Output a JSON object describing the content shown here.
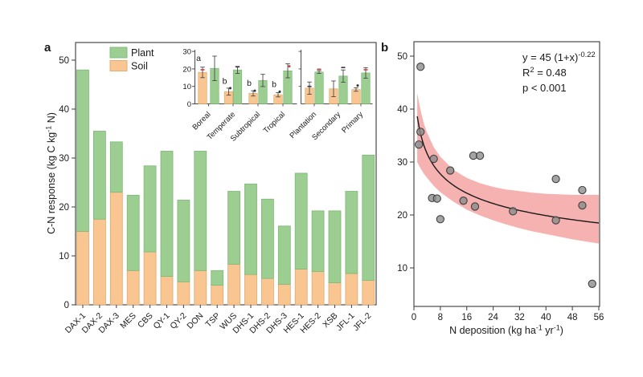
{
  "style": {
    "plant_color": "#9CCE92",
    "plant_stroke": "#7FB878",
    "soil_color": "#F9C591",
    "soil_stroke": "#DFA96F",
    "band_color": "#F5A3A3",
    "fit_color": "#1a1a1a",
    "point_fill": "#8a8a8a",
    "point_stroke": "#404040",
    "axis_color": "#4a4a4a",
    "text_color": "#1a1a1a",
    "overlay_red": "#c0453f",
    "overlay_black": "#333333"
  },
  "panel_a": {
    "label": "a",
    "ylabel_parts": [
      {
        "t": "C-N response (kg C kg"
      },
      {
        "t": "-1",
        "sup": true
      },
      {
        "t": " N)"
      }
    ],
    "yticks": [
      0,
      10,
      20,
      30,
      40,
      50
    ],
    "legend": [
      {
        "name": "Plant",
        "swatch": "plant"
      },
      {
        "name": "Soil",
        "swatch": "soil"
      }
    ],
    "inset_yticks": [
      0,
      10,
      20,
      30
    ]
  },
  "panel_b": {
    "label": "b",
    "xlabel_parts": [
      {
        "t": "N deposition (kg ha"
      },
      {
        "t": "-1",
        "sup": true
      },
      {
        "t": " yr"
      },
      {
        "t": "-1",
        "sup": true
      },
      {
        "t": ")"
      }
    ],
    "xticks": [
      0,
      8,
      16,
      24,
      32,
      40,
      48,
      56
    ],
    "yticks": [
      10,
      20,
      30,
      40,
      50
    ],
    "annotation": {
      "eq_parts": [
        {
          "t": "y = 45 (1+x)"
        },
        {
          "t": "-0.22",
          "sup": true
        }
      ],
      "r2_parts": [
        {
          "t": "R"
        },
        {
          "t": "2",
          "sup": true
        },
        {
          "t": " = 0.48"
        }
      ],
      "p_parts": [
        {
          "t": "p < 0.001"
        }
      ]
    }
  },
  "chart_data": [
    {
      "id": "site-stacked-bars",
      "type": "bar",
      "stacked": true,
      "categories": [
        "DAX-1",
        "DAX-2",
        "DAX-3",
        "MES",
        "CBS",
        "QY-1",
        "QY-2",
        "DON",
        "TSP",
        "WUS",
        "DHS-1",
        "DHS-2",
        "DHS-3",
        "HES-1",
        "HES-2",
        "XSB",
        "JFL-1",
        "JFL-2"
      ],
      "series": [
        {
          "name": "Soil",
          "values": [
            15,
            17.5,
            23,
            7,
            10.8,
            5.8,
            4.7,
            7,
            4,
            8.3,
            6.2,
            5.4,
            4.2,
            7.3,
            6.8,
            4.5,
            6.4,
            5
          ]
        },
        {
          "name": "Plant",
          "values": [
            33,
            18,
            10.3,
            15.4,
            17.6,
            25.6,
            16.7,
            24.4,
            3,
            14.9,
            18.5,
            16.2,
            11.9,
            19.6,
            12.4,
            14.7,
            16.8,
            25.6
          ]
        }
      ],
      "ylabel": "C-N response (kg C kg-1 N)",
      "ylim": [
        0,
        53.5
      ],
      "legend_position": "top-left-inside"
    },
    {
      "id": "biome-forest-inset",
      "type": "bar",
      "grouped": true,
      "ylim": [
        0,
        32
      ],
      "yticks": [
        0,
        10,
        20,
        30
      ],
      "panels": [
        {
          "categories": [
            "Boreal",
            "Temperate",
            "Subtropical",
            "Tropical"
          ]
        },
        {
          "categories": [
            "Plantation",
            "Secondary",
            "Primary"
          ]
        }
      ],
      "groups": [
        {
          "category": "Boreal",
          "panel": 0,
          "soil": 18,
          "soil_err": 3,
          "plant": 20.3,
          "plant_err": 7,
          "letter": "a",
          "letter_v": 24.5
        },
        {
          "category": "Temperate",
          "panel": 0,
          "soil": 7,
          "soil_err": 2,
          "plant": 19.4,
          "plant_err": 2,
          "letter": "b",
          "letter_v": 11.5
        },
        {
          "category": "Subtropical",
          "panel": 0,
          "soil": 6,
          "soil_err": 1.5,
          "plant": 13.4,
          "plant_err": 3.5,
          "letter": "b",
          "letter_v": 10.3
        },
        {
          "category": "Tropical",
          "panel": 0,
          "soil": 5.2,
          "soil_err": 1.2,
          "plant": 18.9,
          "plant_err": 4,
          "letter": "b",
          "letter_v": 9.6
        },
        {
          "category": "Plantation",
          "panel": 1,
          "soil": 9,
          "soil_err": 3.5,
          "plant": 18.2,
          "plant_err": 0.8
        },
        {
          "category": "Secondary",
          "panel": 1,
          "soil": 8.6,
          "soil_err": 4.5,
          "plant": 15.9,
          "plant_err": 3.5
        },
        {
          "category": "Primary",
          "panel": 1,
          "soil": 8.2,
          "soil_err": 1,
          "plant": 17.7,
          "plant_err": 3
        }
      ],
      "overlay_points": [
        {
          "category": "Boreal",
          "bar": "soil",
          "value": 19.5,
          "color": "red",
          "shape": "dash"
        },
        {
          "category": "Temperate",
          "bar": "soil",
          "value": 9,
          "color": "black",
          "shape": "dot"
        },
        {
          "category": "Temperate",
          "bar": "plant",
          "value": 21.2,
          "color": "black",
          "shape": "dash"
        },
        {
          "category": "Subtropical",
          "bar": "soil",
          "value": 7.5,
          "color": "black",
          "shape": "dot"
        },
        {
          "category": "Tropical",
          "bar": "soil",
          "value": 7,
          "color": "black",
          "shape": "dot"
        },
        {
          "category": "Tropical",
          "bar": "plant",
          "value": 21.5,
          "color": "red",
          "shape": "dot"
        },
        {
          "category": "Plantation",
          "bar": "soil",
          "value": 10,
          "color": "black",
          "shape": "dash"
        },
        {
          "category": "Plantation",
          "bar": "plant",
          "value": 19.8,
          "color": "red",
          "shape": "dash"
        },
        {
          "category": "Secondary",
          "bar": "plant",
          "value": 20.8,
          "color": "black",
          "shape": "dash"
        },
        {
          "category": "Primary",
          "bar": "soil",
          "value": 10.5,
          "color": "black",
          "shape": "dot"
        },
        {
          "category": "Primary",
          "bar": "plant",
          "value": 19.5,
          "color": "red",
          "shape": "dash"
        }
      ]
    },
    {
      "id": "ndep-scatter",
      "type": "scatter",
      "xlabel": "N deposition (kg ha-1 yr-1)",
      "xlim": [
        0,
        56.3
      ],
      "ylim": [
        2.7,
        52.7
      ],
      "xticks": [
        0,
        8,
        16,
        24,
        32,
        40,
        48,
        56
      ],
      "yticks": [
        10,
        20,
        30,
        40,
        50
      ],
      "points": [
        [
          2,
          48
        ],
        [
          2,
          35.7
        ],
        [
          1.5,
          33.3
        ],
        [
          6,
          30.6
        ],
        [
          11,
          28.4
        ],
        [
          18,
          31.2
        ],
        [
          20,
          31.2
        ],
        [
          5.5,
          23.2
        ],
        [
          7,
          23.1
        ],
        [
          8,
          19.2
        ],
        [
          15,
          22.7
        ],
        [
          18.5,
          21.6
        ],
        [
          30,
          20.7
        ],
        [
          43,
          26.8
        ],
        [
          43,
          19
        ],
        [
          51,
          24.7
        ],
        [
          51,
          21.8
        ],
        [
          54,
          7
        ]
      ],
      "fit": {
        "type": "power",
        "a": 45,
        "b": -0.22,
        "x_start": 1,
        "x_end": 56,
        "r2": 0.48,
        "p": "< 0.001"
      },
      "band": {
        "x": [
          1,
          2,
          3,
          4,
          6,
          8,
          12,
          16,
          20,
          24,
          28,
          32,
          36,
          40,
          44,
          48,
          52,
          56
        ],
        "upper": [
          43,
          39.8,
          37.3,
          35.5,
          32.8,
          31,
          28.5,
          27,
          26,
          25.3,
          24.8,
          24.5,
          24.2,
          24,
          23.9,
          23.8,
          23.8,
          23.8
        ],
        "lower": [
          30,
          28.8,
          27.8,
          27,
          25.5,
          24.3,
          22.5,
          21,
          19.9,
          19,
          18.2,
          17.5,
          16.9,
          16.4,
          15.9,
          15.4,
          15,
          14.6
        ]
      }
    }
  ]
}
